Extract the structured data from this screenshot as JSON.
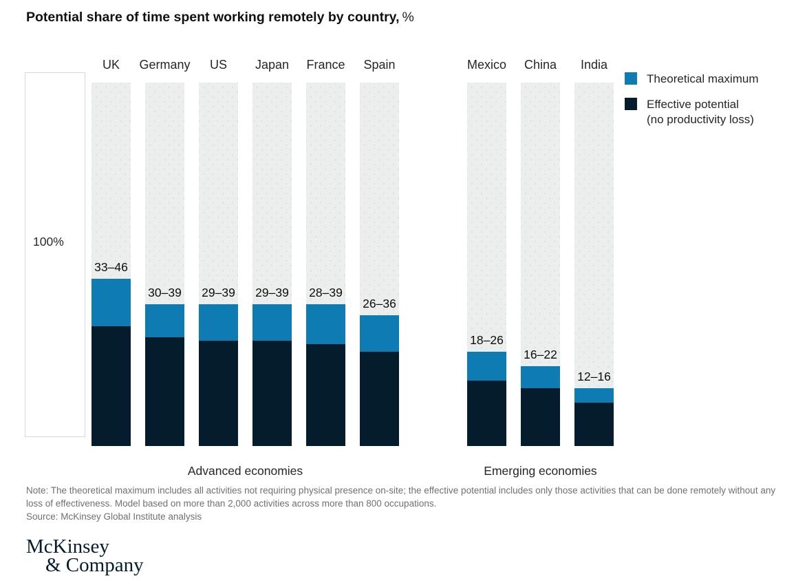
{
  "title": {
    "main": "Potential share of time spent working remotely by country,",
    "suffix": "%"
  },
  "axis": {
    "reference_label": "100%"
  },
  "legend": {
    "items": [
      {
        "label": "Theoretical maximum",
        "sublabel": "",
        "color": "#0e7cb3"
      },
      {
        "label": "Effective potential",
        "sublabel": "(no productivity loss)",
        "color": "#051c2c"
      }
    ]
  },
  "chart_data": {
    "type": "bar",
    "stacked": true,
    "ylim": [
      0,
      100
    ],
    "axis_reference_label": "100%",
    "track_color": "#eceded",
    "series": [
      {
        "name": "Theoretical maximum",
        "color": "#0e7cb3"
      },
      {
        "name": "Effective potential (no productivity loss)",
        "color": "#051c2c"
      }
    ],
    "groups": [
      {
        "label": "Advanced economies",
        "categories": [
          "UK",
          "Germany",
          "US",
          "Japan",
          "France",
          "Spain"
        ],
        "effective_potential": [
          33,
          30,
          29,
          29,
          28,
          26
        ],
        "theoretical_maximum": [
          46,
          39,
          39,
          39,
          39,
          36
        ],
        "bar_labels": [
          "33–46",
          "30–39",
          "29–39",
          "29–39",
          "28–39",
          "26–36"
        ]
      },
      {
        "label": "Emerging economies",
        "categories": [
          "Mexico",
          "China",
          "India"
        ],
        "effective_potential": [
          18,
          16,
          12
        ],
        "theoretical_maximum": [
          26,
          22,
          16
        ],
        "bar_labels": [
          "18–26",
          "16–22",
          "12–16"
        ]
      }
    ]
  },
  "notes": {
    "note": "Note: The theoretical maximum includes all activities not requiring physical presence on-site; the effective potential includes only those activities that can be done remotely without any loss of effectiveness. Model based on more than 2,000 activities across more than 800 occupations.",
    "source": "Source: McKinsey Global Institute analysis"
  },
  "logo": {
    "line1": "McKinsey",
    "line2": "& Company"
  }
}
